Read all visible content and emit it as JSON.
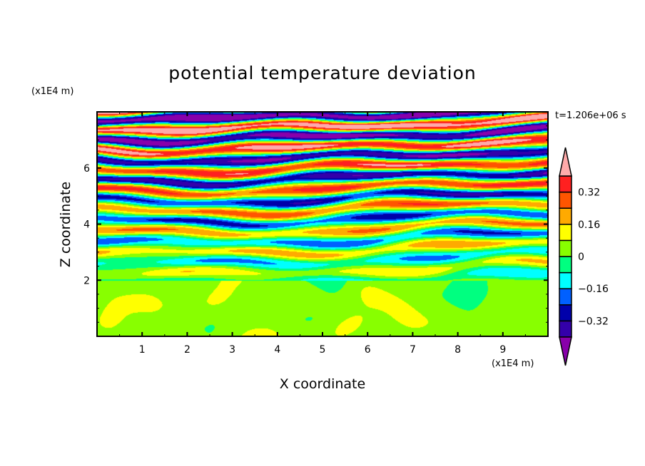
{
  "chart_data": {
    "type": "heatmap",
    "title": "potential temperature deviation",
    "xlabel": "X coordinate",
    "ylabel": "Z coordinate",
    "x_unit": "(x1E4 m)",
    "y_unit": "(x1E4 m)",
    "time_label": "t=1.206e+06 s",
    "xlim": [
      0,
      10
    ],
    "ylim": [
      0,
      8
    ],
    "x_ticks": [
      "1",
      "2",
      "3",
      "4",
      "5",
      "6",
      "7",
      "8",
      "9"
    ],
    "y_ticks": [
      "2",
      "4",
      "6"
    ],
    "colorbar": {
      "levels": [
        -0.4,
        -0.32,
        -0.24,
        -0.16,
        -0.08,
        0,
        0.08,
        0.16,
        0.24,
        0.32,
        0.4
      ],
      "tick_labels": [
        {
          "value": 0.32,
          "label": "0.32"
        },
        {
          "value": 0.16,
          "label": "0.16"
        },
        {
          "value": 0,
          "label": "0"
        },
        {
          "value": -0.16,
          "label": "−0.16"
        },
        {
          "value": -0.32,
          "label": "−0.32"
        }
      ],
      "colors_low_to_high": [
        "#8800aa",
        "#3300aa",
        "#0000aa",
        "#0060ff",
        "#00ffff",
        "#00ff80",
        "#88ff00",
        "#ffff00",
        "#ffaa00",
        "#ff5500",
        "#ff2020",
        "#ffaaaa"
      ],
      "extend": "both",
      "placement": "right"
    },
    "description_of_field": "near-neutral (between -0.08 and 0.08) below z=2, horizontally stratified alternating layers above z=2 with amplitude increasing with height"
  }
}
